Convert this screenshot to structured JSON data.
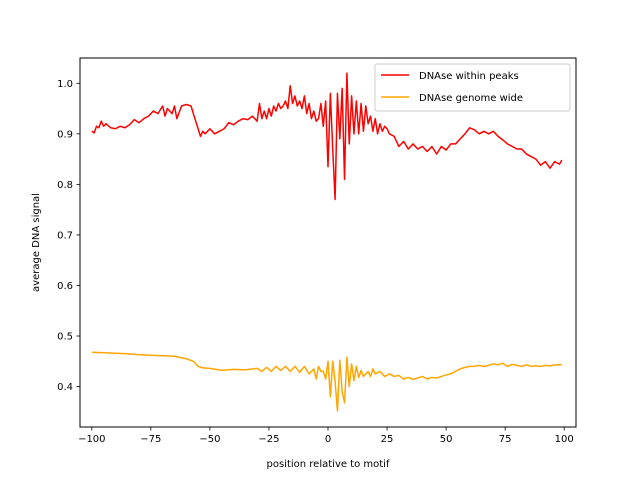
{
  "chart_data": {
    "type": "line",
    "xlabel": "position relative to motif",
    "ylabel": "average DNA signal",
    "xlim": [
      -105,
      105
    ],
    "ylim": [
      0.32,
      1.05
    ],
    "xticks": [
      -100,
      -75,
      -50,
      -25,
      0,
      25,
      50,
      75,
      100
    ],
    "xtick_labels": [
      "−100",
      "−75",
      "−50",
      "−25",
      "0",
      "25",
      "50",
      "75",
      "100"
    ],
    "yticks": [
      0.4,
      0.5,
      0.6,
      0.7,
      0.8,
      0.9,
      1.0
    ],
    "ytick_labels": [
      "0.4",
      "0.5",
      "0.6",
      "0.7",
      "0.8",
      "0.9",
      "1.0"
    ],
    "grid": false,
    "legend_position": "top-right",
    "series": [
      {
        "name": "DNAse within peaks",
        "color": "#ff0000",
        "x": [
          -100,
          -99,
          -98,
          -97,
          -96,
          -95,
          -94,
          -92,
          -90,
          -88,
          -86,
          -84,
          -82,
          -80,
          -78,
          -76,
          -74,
          -72,
          -70,
          -69,
          -68,
          -67,
          -66,
          -65,
          -64,
          -62,
          -60,
          -58,
          -57,
          -56,
          -55,
          -54,
          -53,
          -52,
          -51,
          -50,
          -48,
          -46,
          -44,
          -42,
          -40,
          -38,
          -36,
          -34,
          -32,
          -30,
          -29,
          -28,
          -27,
          -26,
          -25,
          -24,
          -23,
          -22,
          -21,
          -20,
          -19,
          -18,
          -17,
          -16,
          -15,
          -14,
          -13,
          -12,
          -11,
          -10,
          -9,
          -8,
          -7,
          -6,
          -5,
          -4,
          -3,
          -2,
          -1,
          0,
          1,
          2,
          3,
          4,
          5,
          6,
          7,
          8,
          9,
          10,
          11,
          12,
          13,
          14,
          15,
          16,
          17,
          18,
          19,
          20,
          21,
          22,
          23,
          24,
          25,
          26,
          28,
          30,
          32,
          34,
          36,
          38,
          40,
          42,
          44,
          46,
          48,
          50,
          52,
          54,
          56,
          58,
          60,
          62,
          64,
          66,
          68,
          70,
          72,
          74,
          76,
          78,
          80,
          82,
          84,
          86,
          88,
          90,
          92,
          94,
          96,
          98,
          99
        ],
        "y": [
          0.905,
          0.902,
          0.915,
          0.912,
          0.925,
          0.915,
          0.92,
          0.912,
          0.91,
          0.915,
          0.912,
          0.918,
          0.928,
          0.922,
          0.93,
          0.935,
          0.945,
          0.94,
          0.955,
          0.935,
          0.95,
          0.945,
          0.94,
          0.955,
          0.93,
          0.955,
          0.958,
          0.955,
          0.94,
          0.925,
          0.91,
          0.895,
          0.905,
          0.9,
          0.905,
          0.91,
          0.9,
          0.905,
          0.91,
          0.922,
          0.918,
          0.925,
          0.93,
          0.928,
          0.935,
          0.925,
          0.96,
          0.93,
          0.945,
          0.93,
          0.95,
          0.935,
          0.955,
          0.945,
          0.96,
          0.95,
          0.955,
          0.965,
          0.95,
          0.995,
          0.96,
          0.975,
          0.955,
          0.965,
          0.95,
          0.975,
          0.94,
          0.96,
          0.93,
          0.945,
          0.925,
          0.93,
          0.96,
          0.915,
          0.965,
          0.835,
          0.98,
          0.87,
          0.77,
          0.98,
          0.89,
          0.99,
          0.81,
          1.02,
          0.88,
          0.975,
          0.9,
          0.965,
          0.9,
          0.96,
          0.905,
          0.955,
          0.92,
          0.935,
          0.905,
          0.93,
          0.9,
          0.92,
          0.905,
          0.915,
          0.91,
          0.9,
          0.895,
          0.875,
          0.885,
          0.87,
          0.88,
          0.87,
          0.875,
          0.865,
          0.875,
          0.86,
          0.875,
          0.868,
          0.88,
          0.88,
          0.89,
          0.9,
          0.912,
          0.908,
          0.9,
          0.905,
          0.9,
          0.905,
          0.895,
          0.888,
          0.88,
          0.875,
          0.87,
          0.87,
          0.86,
          0.855,
          0.85,
          0.838,
          0.845,
          0.832,
          0.845,
          0.84,
          0.848
        ]
      },
      {
        "name": "DNAse genome wide",
        "color": "#ffa500",
        "x": [
          -100,
          -95,
          -90,
          -85,
          -80,
          -75,
          -70,
          -65,
          -60,
          -57,
          -55,
          -53,
          -50,
          -45,
          -40,
          -35,
          -30,
          -28,
          -26,
          -24,
          -22,
          -20,
          -18,
          -16,
          -14,
          -12,
          -10,
          -8,
          -6,
          -5,
          -4,
          -3,
          -2,
          -1,
          0,
          1,
          2,
          3,
          4,
          5,
          6,
          7,
          8,
          9,
          10,
          11,
          12,
          13,
          14,
          15,
          16,
          17,
          18,
          19,
          20,
          22,
          24,
          26,
          28,
          30,
          32,
          34,
          36,
          38,
          40,
          42,
          44,
          46,
          48,
          50,
          52,
          54,
          56,
          58,
          60,
          62,
          64,
          66,
          68,
          70,
          72,
          74,
          76,
          78,
          80,
          82,
          84,
          86,
          88,
          90,
          92,
          94,
          96,
          98,
          99
        ],
        "y": [
          0.468,
          0.467,
          0.466,
          0.465,
          0.463,
          0.462,
          0.461,
          0.46,
          0.455,
          0.45,
          0.44,
          0.437,
          0.436,
          0.432,
          0.434,
          0.433,
          0.436,
          0.43,
          0.438,
          0.43,
          0.44,
          0.432,
          0.44,
          0.43,
          0.44,
          0.428,
          0.44,
          0.425,
          0.435,
          0.415,
          0.44,
          0.43,
          0.43,
          0.415,
          0.45,
          0.38,
          0.45,
          0.41,
          0.352,
          0.452,
          0.39,
          0.368,
          0.458,
          0.4,
          0.445,
          0.412,
          0.44,
          0.418,
          0.432,
          0.42,
          0.425,
          0.43,
          0.42,
          0.435,
          0.425,
          0.43,
          0.42,
          0.425,
          0.42,
          0.422,
          0.415,
          0.418,
          0.414,
          0.417,
          0.42,
          0.415,
          0.418,
          0.417,
          0.42,
          0.423,
          0.425,
          0.43,
          0.435,
          0.438,
          0.44,
          0.44,
          0.442,
          0.44,
          0.442,
          0.445,
          0.443,
          0.446,
          0.44,
          0.444,
          0.442,
          0.44,
          0.443,
          0.44,
          0.441,
          0.44,
          0.442,
          0.441,
          0.443,
          0.443,
          0.444
        ]
      }
    ]
  }
}
